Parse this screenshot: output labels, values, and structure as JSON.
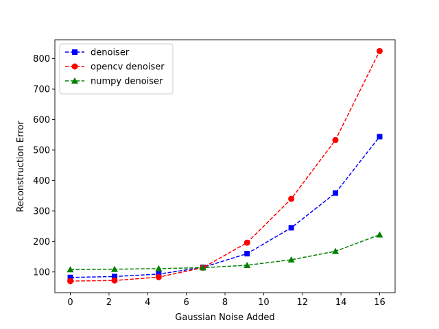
{
  "chart_data": {
    "type": "line",
    "xlabel": "Gaussian Noise Added",
    "ylabel": "Reconstruction Error",
    "xlim": [
      -0.8,
      16.8
    ],
    "ylim": [
      32,
      862
    ],
    "xticks": [
      0,
      2,
      4,
      6,
      8,
      10,
      12,
      14,
      16
    ],
    "yticks": [
      100,
      200,
      300,
      400,
      500,
      600,
      700,
      800
    ],
    "legend_position": "top-left",
    "grid": false,
    "x": [
      0,
      2.286,
      4.571,
      6.857,
      9.143,
      11.429,
      13.714,
      16
    ],
    "series": [
      {
        "name": "denoiser",
        "color": "#0000ff",
        "marker": "square",
        "line_style": "dashed",
        "values": [
          82,
          85,
          93,
          115,
          160,
          245,
          359,
          544
        ]
      },
      {
        "name": "opencv denoiser",
        "color": "#ff0000",
        "marker": "circle",
        "line_style": "dashed",
        "values": [
          70,
          72,
          83,
          114,
          196,
          340,
          533,
          825
        ]
      },
      {
        "name": "numpy denoiser",
        "color": "#008000",
        "marker": "triangle",
        "line_style": "dashed",
        "values": [
          108,
          109,
          111,
          114,
          122,
          140,
          168,
          222
        ]
      }
    ]
  }
}
